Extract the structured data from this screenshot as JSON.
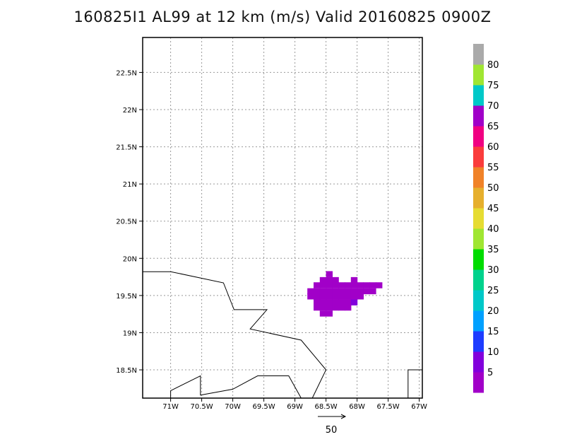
{
  "chart_data": {
    "type": "heatmap",
    "title": "160825I1 AL99 at 12 km (m/s) Valid 20160825 0900Z",
    "xlim": [
      -71.45,
      -66.95
    ],
    "ylim": [
      18.12,
      22.97
    ],
    "x_ticks": [
      {
        "value": -71.0,
        "label": "71W"
      },
      {
        "value": -70.5,
        "label": "70.5W"
      },
      {
        "value": -70.0,
        "label": "70W"
      },
      {
        "value": -69.5,
        "label": "69.5W"
      },
      {
        "value": -69.0,
        "label": "69W"
      },
      {
        "value": -68.5,
        "label": "68.5W"
      },
      {
        "value": -68.0,
        "label": "68W"
      },
      {
        "value": -67.5,
        "label": "67.5W"
      },
      {
        "value": -67.0,
        "label": "67W"
      }
    ],
    "y_ticks": [
      {
        "value": 18.5,
        "label": "18.5N"
      },
      {
        "value": 19.0,
        "label": "19N"
      },
      {
        "value": 19.5,
        "label": "19.5N"
      },
      {
        "value": 20.0,
        "label": "20N"
      },
      {
        "value": 20.5,
        "label": "20.5N"
      },
      {
        "value": 21.0,
        "label": "21N"
      },
      {
        "value": 21.5,
        "label": "21.5N"
      },
      {
        "value": 22.0,
        "label": "22N"
      },
      {
        "value": 22.5,
        "label": "22.5N"
      }
    ],
    "grid": true,
    "cells": [
      {
        "lon": -68.45,
        "lat": 19.79,
        "v": 3
      },
      {
        "lon": -68.55,
        "lat": 19.71,
        "v": 3
      },
      {
        "lon": -68.45,
        "lat": 19.71,
        "v": 3
      },
      {
        "lon": -68.35,
        "lat": 19.71,
        "v": 3
      },
      {
        "lon": -68.05,
        "lat": 19.71,
        "v": 3
      },
      {
        "lon": -68.65,
        "lat": 19.64,
        "v": 3
      },
      {
        "lon": -68.55,
        "lat": 19.64,
        "v": 3
      },
      {
        "lon": -68.45,
        "lat": 19.64,
        "v": 3
      },
      {
        "lon": -68.35,
        "lat": 19.64,
        "v": 3
      },
      {
        "lon": -68.25,
        "lat": 19.64,
        "v": 3
      },
      {
        "lon": -68.15,
        "lat": 19.64,
        "v": 3
      },
      {
        "lon": -68.05,
        "lat": 19.64,
        "v": 3
      },
      {
        "lon": -67.95,
        "lat": 19.64,
        "v": 3
      },
      {
        "lon": -67.85,
        "lat": 19.64,
        "v": 3
      },
      {
        "lon": -67.75,
        "lat": 19.64,
        "v": 3
      },
      {
        "lon": -67.65,
        "lat": 19.64,
        "v": 3
      },
      {
        "lon": -68.75,
        "lat": 19.56,
        "v": 3
      },
      {
        "lon": -68.65,
        "lat": 19.56,
        "v": 3
      },
      {
        "lon": -68.55,
        "lat": 19.56,
        "v": 3
      },
      {
        "lon": -68.45,
        "lat": 19.56,
        "v": 3
      },
      {
        "lon": -68.35,
        "lat": 19.56,
        "v": 3
      },
      {
        "lon": -68.25,
        "lat": 19.56,
        "v": 3
      },
      {
        "lon": -68.15,
        "lat": 19.56,
        "v": 3
      },
      {
        "lon": -68.05,
        "lat": 19.56,
        "v": 3
      },
      {
        "lon": -67.95,
        "lat": 19.56,
        "v": 3
      },
      {
        "lon": -67.85,
        "lat": 19.56,
        "v": 3
      },
      {
        "lon": -67.75,
        "lat": 19.56,
        "v": 3
      },
      {
        "lon": -68.75,
        "lat": 19.49,
        "v": 3
      },
      {
        "lon": -68.65,
        "lat": 19.49,
        "v": 3
      },
      {
        "lon": -68.55,
        "lat": 19.49,
        "v": 3
      },
      {
        "lon": -68.45,
        "lat": 19.49,
        "v": 3
      },
      {
        "lon": -68.35,
        "lat": 19.49,
        "v": 3
      },
      {
        "lon": -68.25,
        "lat": 19.49,
        "v": 3
      },
      {
        "lon": -68.15,
        "lat": 19.49,
        "v": 3
      },
      {
        "lon": -68.05,
        "lat": 19.49,
        "v": 3
      },
      {
        "lon": -67.95,
        "lat": 19.49,
        "v": 3
      },
      {
        "lon": -68.65,
        "lat": 19.41,
        "v": 3
      },
      {
        "lon": -68.55,
        "lat": 19.41,
        "v": 3
      },
      {
        "lon": -68.45,
        "lat": 19.41,
        "v": 3
      },
      {
        "lon": -68.35,
        "lat": 19.41,
        "v": 3
      },
      {
        "lon": -68.25,
        "lat": 19.41,
        "v": 3
      },
      {
        "lon": -68.15,
        "lat": 19.41,
        "v": 3
      },
      {
        "lon": -68.05,
        "lat": 19.41,
        "v": 8
      },
      {
        "lon": -68.65,
        "lat": 19.34,
        "v": 3
      },
      {
        "lon": -68.55,
        "lat": 19.34,
        "v": 3
      },
      {
        "lon": -68.45,
        "lat": 19.34,
        "v": 3
      },
      {
        "lon": -68.35,
        "lat": 19.34,
        "v": 3
      },
      {
        "lon": -68.25,
        "lat": 19.34,
        "v": 3
      },
      {
        "lon": -68.15,
        "lat": 19.34,
        "v": 3
      },
      {
        "lon": -68.55,
        "lat": 19.26,
        "v": 3
      },
      {
        "lon": -68.45,
        "lat": 19.26,
        "v": 3
      }
    ],
    "coastline": [
      [
        [
          -71.45,
          19.82
        ],
        [
          -71.0,
          19.82
        ],
        [
          -70.15,
          19.67
        ],
        [
          -69.98,
          19.31
        ],
        [
          -69.45,
          19.31
        ],
        [
          -69.72,
          19.05
        ],
        [
          -68.9,
          18.9
        ],
        [
          -68.5,
          18.5
        ],
        [
          -68.72,
          18.12
        ]
      ],
      [
        [
          -68.9,
          18.12
        ],
        [
          -69.1,
          18.42
        ],
        [
          -69.6,
          18.42
        ],
        [
          -70.0,
          18.24
        ],
        [
          -70.52,
          18.16
        ],
        [
          -70.52,
          18.42
        ],
        [
          -71.0,
          18.22
        ],
        [
          -71.0,
          18.12
        ]
      ],
      [
        [
          -67.18,
          18.12
        ],
        [
          -67.18,
          18.5
        ],
        [
          -66.95,
          18.5
        ]
      ]
    ],
    "colorbar": {
      "labels": [
        "5",
        "10",
        "15",
        "20",
        "25",
        "30",
        "35",
        "40",
        "45",
        "50",
        "55",
        "60",
        "65",
        "70",
        "75",
        "80"
      ],
      "colors": [
        "#a100c8",
        "#8200dc",
        "#1e3cff",
        "#00a0ff",
        "#00c8c8",
        "#00d28c",
        "#00dc00",
        "#a0e632",
        "#e6dc32",
        "#e6af2d",
        "#f08228",
        "#fa3c3c",
        "#f00082",
        "#a000c8",
        "#00c8c8",
        "#a0e632",
        "#aaaaaa"
      ]
    },
    "reference_vector": {
      "label": "50"
    }
  }
}
